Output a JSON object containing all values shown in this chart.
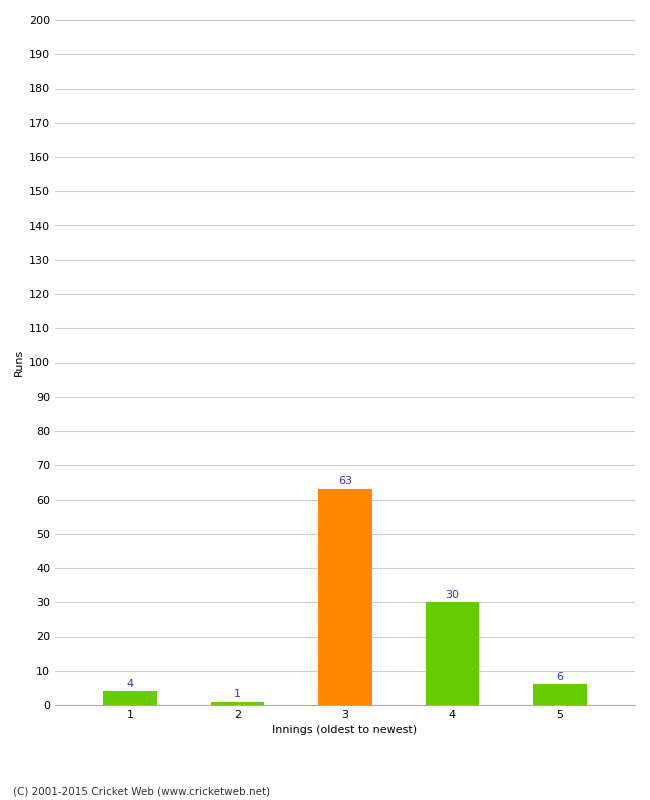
{
  "xlabel": "Innings (oldest to newest)",
  "ylabel": "Runs",
  "categories": [
    "1",
    "2",
    "3",
    "4",
    "5"
  ],
  "values": [
    4,
    1,
    63,
    30,
    6
  ],
  "bar_colors": [
    "#66cc00",
    "#66cc00",
    "#ff8800",
    "#66cc00",
    "#66cc00"
  ],
  "value_labels": [
    4,
    1,
    63,
    30,
    6
  ],
  "ylim": [
    0,
    200
  ],
  "yticks": [
    0,
    10,
    20,
    30,
    40,
    50,
    60,
    70,
    80,
    90,
    100,
    110,
    120,
    130,
    140,
    150,
    160,
    170,
    180,
    190,
    200
  ],
  "label_color": "#3333cc",
  "label_fontsize": 8,
  "axis_fontsize": 8,
  "ylabel_fontsize": 8,
  "copyright_text": "(C) 2001-2015 Cricket Web (www.cricketweb.net)",
  "background_color": "#ffffff",
  "grid_color": "#cccccc",
  "bar_width": 0.5
}
